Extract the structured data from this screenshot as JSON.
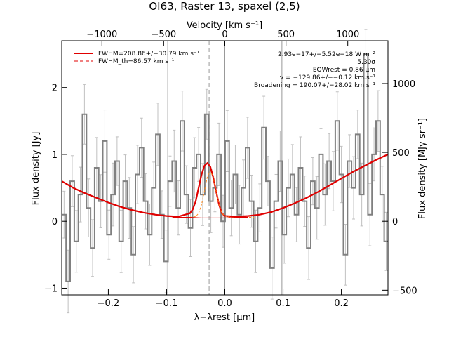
{
  "chart_data": {
    "type": "line",
    "title": "OI63, Raster 13, spaxel (2,5)",
    "xlabel": "λ−λrest [μm]",
    "ylabel": "Flux density [Jy]",
    "top_axis_label": "Velocity [km s⁻¹]",
    "right_axis_label": "Flux density [MJy sr⁻¹]",
    "xlim": [
      -0.28,
      0.28
    ],
    "ylim": [
      -1.1,
      2.7
    ],
    "x_ticks": [
      -0.2,
      -0.1,
      0.0,
      0.1,
      0.2
    ],
    "x_tick_labels": [
      "−0.2",
      "−0.1",
      "0.0",
      "0.1",
      "0.2"
    ],
    "y_ticks": [
      -1,
      0,
      1,
      2
    ],
    "y_tick_labels": [
      "−1",
      "0",
      "1",
      "2"
    ],
    "top_ticks_x": [
      -0.211,
      -0.105,
      0.0,
      0.105,
      0.211
    ],
    "top_tick_labels": [
      "−1000",
      "−500",
      "0",
      "500",
      "1000"
    ],
    "right_ticks_y": [
      -1.03,
      0.0,
      1.03,
      2.06
    ],
    "right_tick_labels": [
      "−500",
      "0",
      "500",
      "1000"
    ],
    "vertical_lines_x": [
      -0.098,
      0.0,
      0.098
    ],
    "dashed_line_x": -0.027,
    "legend": {
      "position": "top-left",
      "entries": [
        {
          "label": "FWHM=208.86+/−30.79 km s⁻¹",
          "style": "solid",
          "color": "#e00000"
        },
        {
          "label": "FWHM_th=86.57 km s⁻¹",
          "style": "dashed",
          "color": "#e00000"
        }
      ]
    },
    "annotations": [
      "2.93e−17+/−5.52e−18 W m⁻²",
      "5.30σ",
      "EQWrest = 0.86 μm",
      "v = −129.86+/−−0.12 km s⁻¹",
      "Broadening = 190.07+/−28.02 km s⁻¹"
    ],
    "series": [
      {
        "name": "",
        "style": "step",
        "color": "#808080",
        "x": [
          -0.276,
          -0.269,
          -0.262,
          -0.255,
          -0.248,
          -0.241,
          -0.234,
          -0.227,
          -0.22,
          -0.213,
          -0.206,
          -0.199,
          -0.192,
          -0.185,
          -0.178,
          -0.171,
          -0.164,
          -0.157,
          -0.15,
          -0.143,
          -0.136,
          -0.129,
          -0.122,
          -0.115,
          -0.108,
          -0.101,
          -0.094,
          -0.087,
          -0.08,
          -0.073,
          -0.066,
          -0.059,
          -0.052,
          -0.045,
          -0.038,
          -0.031,
          -0.024,
          -0.017,
          -0.01,
          -0.003,
          0.004,
          0.011,
          0.018,
          0.025,
          0.032,
          0.039,
          0.046,
          0.053,
          0.06,
          0.067,
          0.074,
          0.081,
          0.088,
          0.095,
          0.102,
          0.109,
          0.116,
          0.123,
          0.13,
          0.137,
          0.144,
          0.151,
          0.158,
          0.165,
          0.172,
          0.179,
          0.186,
          0.193,
          0.2,
          0.207,
          0.214,
          0.221,
          0.228,
          0.235,
          0.242,
          0.249,
          0.256,
          0.263,
          0.27,
          0.277
        ],
        "y": [
          0.1,
          -0.9,
          0.6,
          -0.3,
          0.4,
          1.6,
          0.2,
          -0.4,
          0.8,
          0.3,
          1.2,
          -0.2,
          0.4,
          0.9,
          -0.3,
          0.6,
          0.2,
          -0.5,
          0.7,
          1.1,
          0.3,
          -0.2,
          0.5,
          1.3,
          0.1,
          -0.6,
          0.6,
          0.9,
          0.2,
          1.5,
          0.4,
          -0.1,
          0.8,
          1.0,
          0.4,
          1.6,
          0.3,
          0.5,
          1.0,
          0.0,
          1.2,
          0.2,
          0.7,
          0.1,
          0.5,
          1.1,
          0.3,
          -0.3,
          0.2,
          1.4,
          0.6,
          -0.7,
          0.3,
          0.9,
          -0.2,
          0.5,
          0.7,
          0.1,
          0.8,
          0.3,
          -0.4,
          0.6,
          0.2,
          1.0,
          0.4,
          0.9,
          0.6,
          1.5,
          0.7,
          -0.5,
          0.9,
          0.5,
          1.3,
          0.4,
          2.5,
          0.1,
          1.0,
          1.5,
          0.4,
          -0.3
        ]
      },
      {
        "name": "",
        "style": "smooth",
        "color": "#e00000",
        "x": [
          -0.28,
          -0.26,
          -0.24,
          -0.22,
          -0.2,
          -0.18,
          -0.16,
          -0.14,
          -0.12,
          -0.1,
          -0.08,
          -0.06,
          -0.055,
          -0.05,
          -0.045,
          -0.04,
          -0.035,
          -0.03,
          -0.025,
          -0.02,
          -0.015,
          -0.01,
          -0.005,
          0.0,
          0.02,
          0.04,
          0.06,
          0.08,
          0.1,
          0.12,
          0.14,
          0.16,
          0.18,
          0.2,
          0.22,
          0.24,
          0.26,
          0.28
        ],
        "y": [
          0.6,
          0.5,
          0.42,
          0.35,
          0.28,
          0.22,
          0.17,
          0.13,
          0.1,
          0.08,
          0.07,
          0.12,
          0.18,
          0.3,
          0.5,
          0.7,
          0.83,
          0.87,
          0.82,
          0.66,
          0.45,
          0.25,
          0.12,
          0.08,
          0.07,
          0.08,
          0.1,
          0.14,
          0.2,
          0.27,
          0.35,
          0.44,
          0.54,
          0.64,
          0.74,
          0.83,
          0.92,
          1.0
        ]
      },
      {
        "name": "",
        "style": "smooth",
        "color": "#ff8c20",
        "x": [
          -0.09,
          -0.06,
          -0.05,
          -0.045,
          -0.04,
          -0.035,
          -0.03,
          -0.025,
          -0.02,
          -0.015,
          -0.01,
          -0.005,
          0.0,
          0.01,
          0.02,
          0.05
        ],
        "y": [
          0.06,
          0.06,
          0.07,
          0.12,
          0.25,
          0.45,
          0.67,
          0.75,
          0.66,
          0.45,
          0.25,
          0.12,
          0.08,
          0.06,
          0.06,
          0.06
        ]
      },
      {
        "name": "",
        "style": "smooth",
        "color": "#e00000",
        "x": [
          -0.09,
          -0.06,
          -0.04,
          -0.02,
          0.0,
          0.02,
          0.04
        ],
        "y": [
          0.06,
          0.06,
          0.05,
          0.05,
          0.05,
          0.06,
          0.06
        ]
      }
    ]
  }
}
